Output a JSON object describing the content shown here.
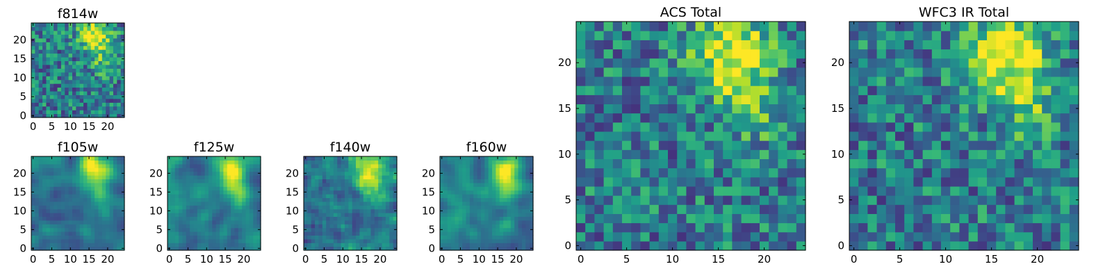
{
  "chart_data": [
    {
      "type": "heatmap",
      "title": "f814w",
      "grid_size": 25,
      "colormap": "viridis",
      "xlim": [
        -0.5,
        24.5
      ],
      "ylim": [
        -0.5,
        24.5
      ],
      "xticks": [
        0,
        5,
        10,
        15,
        20
      ],
      "yticks": [
        0,
        5,
        10,
        15,
        20
      ],
      "bright_region": "top-right",
      "texture": "noisy"
    },
    {
      "type": "heatmap",
      "title": "f105w",
      "grid_size": 25,
      "colormap": "viridis",
      "xlim": [
        -0.5,
        24.5
      ],
      "ylim": [
        -0.5,
        24.5
      ],
      "xticks": [
        0,
        5,
        10,
        15,
        20
      ],
      "yticks": [
        0,
        5,
        10,
        15,
        20
      ],
      "bright_region": "top-right",
      "texture": "smooth"
    },
    {
      "type": "heatmap",
      "title": "f125w",
      "grid_size": 25,
      "colormap": "viridis",
      "xlim": [
        -0.5,
        24.5
      ],
      "ylim": [
        -0.5,
        24.5
      ],
      "xticks": [
        0,
        5,
        10,
        15,
        20
      ],
      "yticks": [
        0,
        5,
        10,
        15,
        20
      ],
      "bright_region": "top-right",
      "texture": "smooth"
    },
    {
      "type": "heatmap",
      "title": "f140w",
      "grid_size": 25,
      "colormap": "viridis",
      "xlim": [
        -0.5,
        24.5
      ],
      "ylim": [
        -0.5,
        24.5
      ],
      "xticks": [
        0,
        5,
        10,
        15,
        20
      ],
      "yticks": [
        0,
        5,
        10,
        15,
        20
      ],
      "bright_region": "top-right",
      "texture": "medium"
    },
    {
      "type": "heatmap",
      "title": "f160w",
      "grid_size": 25,
      "colormap": "viridis",
      "xlim": [
        -0.5,
        24.5
      ],
      "ylim": [
        -0.5,
        24.5
      ],
      "xticks": [
        0,
        5,
        10,
        15,
        20
      ],
      "yticks": [
        0,
        5,
        10,
        15,
        20
      ],
      "bright_region": "top-right",
      "texture": "smooth"
    },
    {
      "type": "heatmap",
      "title": "ACS Total",
      "grid_size": 25,
      "colormap": "viridis",
      "xlim": [
        -0.5,
        24.5
      ],
      "ylim": [
        -0.5,
        24.5
      ],
      "xticks": [
        0,
        5,
        10,
        15,
        20
      ],
      "yticks": [
        0,
        5,
        10,
        15,
        20
      ],
      "bright_region": "top-right",
      "texture": "noisy"
    },
    {
      "type": "heatmap",
      "title": "WFC3 IR Total",
      "grid_size": 25,
      "colormap": "viridis",
      "xlim": [
        -0.5,
        24.5
      ],
      "ylim": [
        -0.5,
        24.5
      ],
      "xticks": [
        0,
        5,
        10,
        15,
        20
      ],
      "yticks": [
        0,
        5,
        10,
        15,
        20
      ],
      "bright_region": "top-right",
      "texture": "noisy"
    }
  ]
}
